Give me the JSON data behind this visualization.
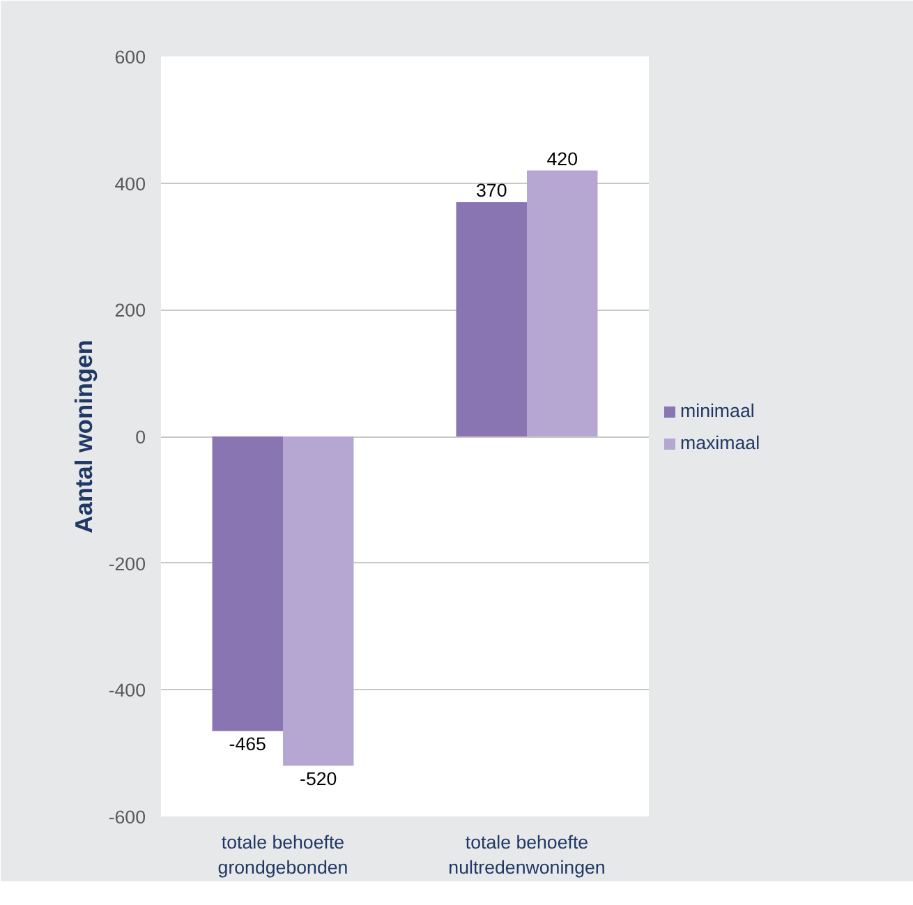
{
  "chart_data": {
    "type": "bar",
    "ylabel": "Aantal woningen",
    "categories": [
      "totale behoefte grondgebonden",
      "totale behoefte nultredenwoningen"
    ],
    "series": [
      {
        "name": "minimaal",
        "color": "#8a75b3",
        "values": [
          -465,
          370
        ]
      },
      {
        "name": "maximaal",
        "color": "#b5a7d1",
        "values": [
          -520,
          420
        ]
      }
    ],
    "ylim": [
      -600,
      600
    ],
    "yticks": [
      -600,
      -400,
      -200,
      0,
      200,
      400,
      600
    ],
    "data_labels": true,
    "grid": "y",
    "legend": "right"
  }
}
